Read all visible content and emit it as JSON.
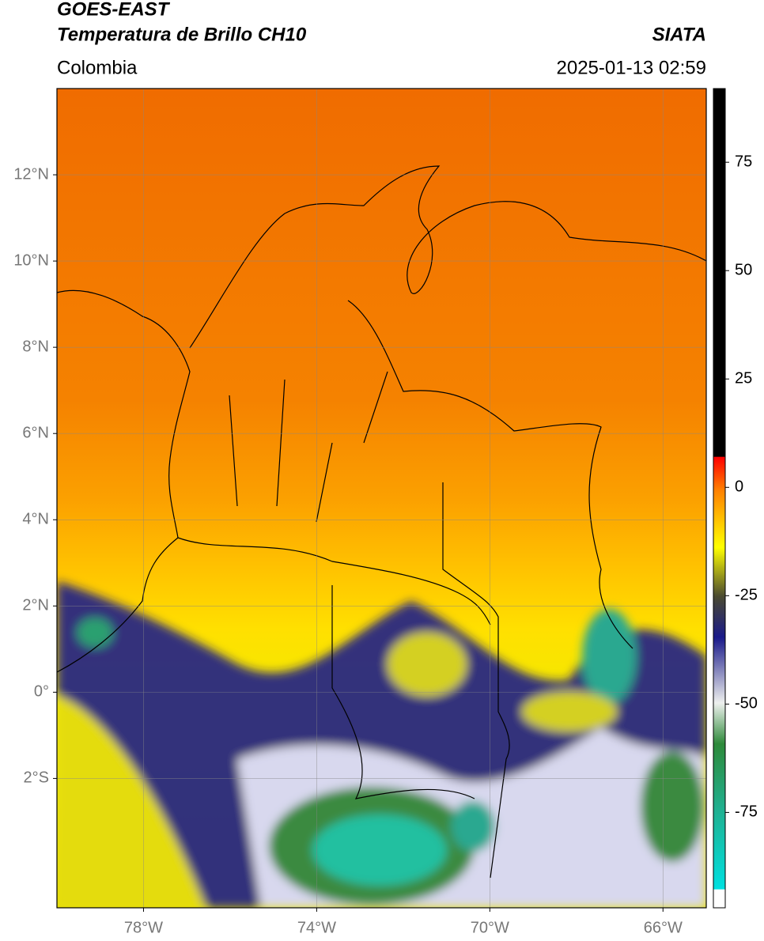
{
  "header": {
    "title": "GOES-EAST",
    "product": "Temperatura de Brillo CH10",
    "source": "SIATA",
    "region": "Colombia",
    "datetime": "2025-01-13 02:59"
  },
  "map": {
    "lonlim": [
      -80,
      -65
    ],
    "latlim": [
      -5,
      14
    ],
    "lat_ticks": [
      {
        "value": 12,
        "label": "12°N"
      },
      {
        "value": 10,
        "label": "10°N"
      },
      {
        "value": 8,
        "label": "8°N"
      },
      {
        "value": 6,
        "label": "6°N"
      },
      {
        "value": 4,
        "label": "4°N"
      },
      {
        "value": 2,
        "label": "2°N"
      },
      {
        "value": 0,
        "label": "0°"
      },
      {
        "value": -2,
        "label": "2°S"
      }
    ],
    "lon_ticks": [
      {
        "value": -78,
        "label": "78°W"
      },
      {
        "value": -74,
        "label": "74°W"
      },
      {
        "value": -70,
        "label": "70°W"
      },
      {
        "value": -66,
        "label": "66°W"
      }
    ],
    "grid": true
  },
  "colorbar": {
    "lim": [
      -97,
      92
    ],
    "ticks": [
      75,
      50,
      25,
      0,
      -25,
      -50,
      -75
    ]
  }
}
